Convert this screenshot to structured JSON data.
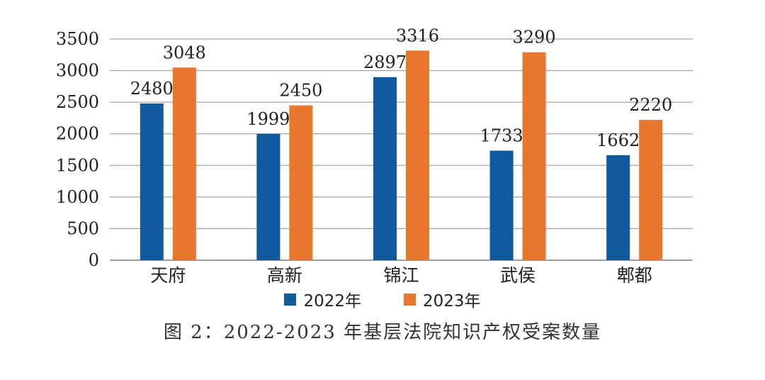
{
  "chart_data": {
    "type": "bar",
    "categories": [
      "天府",
      "高新",
      "锦江",
      "武侯",
      "郫都"
    ],
    "series": [
      {
        "name": "2022年",
        "color": "#0e5a9c",
        "values": [
          2480,
          1999,
          2897,
          1733,
          1662
        ]
      },
      {
        "name": "2023年",
        "color": "#e8772e",
        "values": [
          3048,
          2450,
          3316,
          3290,
          2220
        ]
      }
    ],
    "yticks": [
      "0",
      "500",
      "1000",
      "1500",
      "2000",
      "2500",
      "3000",
      "3500"
    ],
    "ylim": [
      0,
      3500
    ],
    "grid": true,
    "legend_position": "bottom",
    "caption": "图 2：2022-2023 年基层法院知识产权受案数量"
  }
}
